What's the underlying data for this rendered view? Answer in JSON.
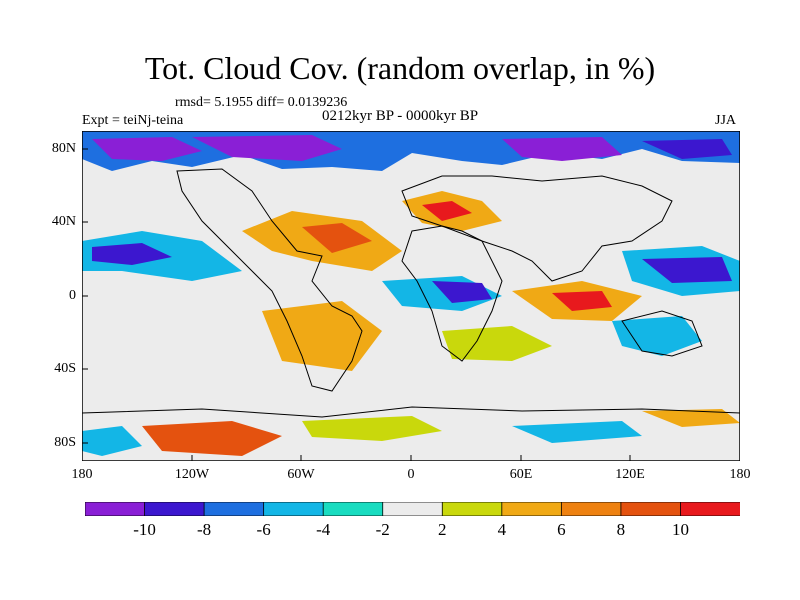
{
  "title": "Tot. Cloud Cov. (random overlap, in %)",
  "stats": "rmsd= 5.1955  diff= 0.0139236",
  "subtitle": "0212kyr BP - 0000kyr BP",
  "experiment": "Expt = teiNj-teina",
  "season": "JJA",
  "axes": {
    "y_ticks": [
      "80N",
      "40N",
      "0",
      "40S",
      "80S"
    ],
    "x_ticks": [
      "180",
      "120W",
      "60W",
      "0",
      "60E",
      "120E",
      "180"
    ]
  },
  "colorbar": {
    "labels": [
      "-10",
      "-8",
      "-6",
      "-4",
      "-2",
      "2",
      "4",
      "6",
      "8",
      "10"
    ],
    "colors": [
      "#8a1fd6",
      "#3c17cf",
      "#1e6fe0",
      "#13b6e6",
      "#19dcc0",
      "#ececec",
      "#c9d80c",
      "#f0a915",
      "#ee8110",
      "#e4520f",
      "#e8191d"
    ]
  },
  "map": {
    "type": "filled contour anomaly map",
    "projection": "cylindrical equidistant",
    "lon_range": [
      -180,
      180
    ],
    "lat_range": [
      -90,
      90
    ],
    "background_color": "#ececec"
  }
}
